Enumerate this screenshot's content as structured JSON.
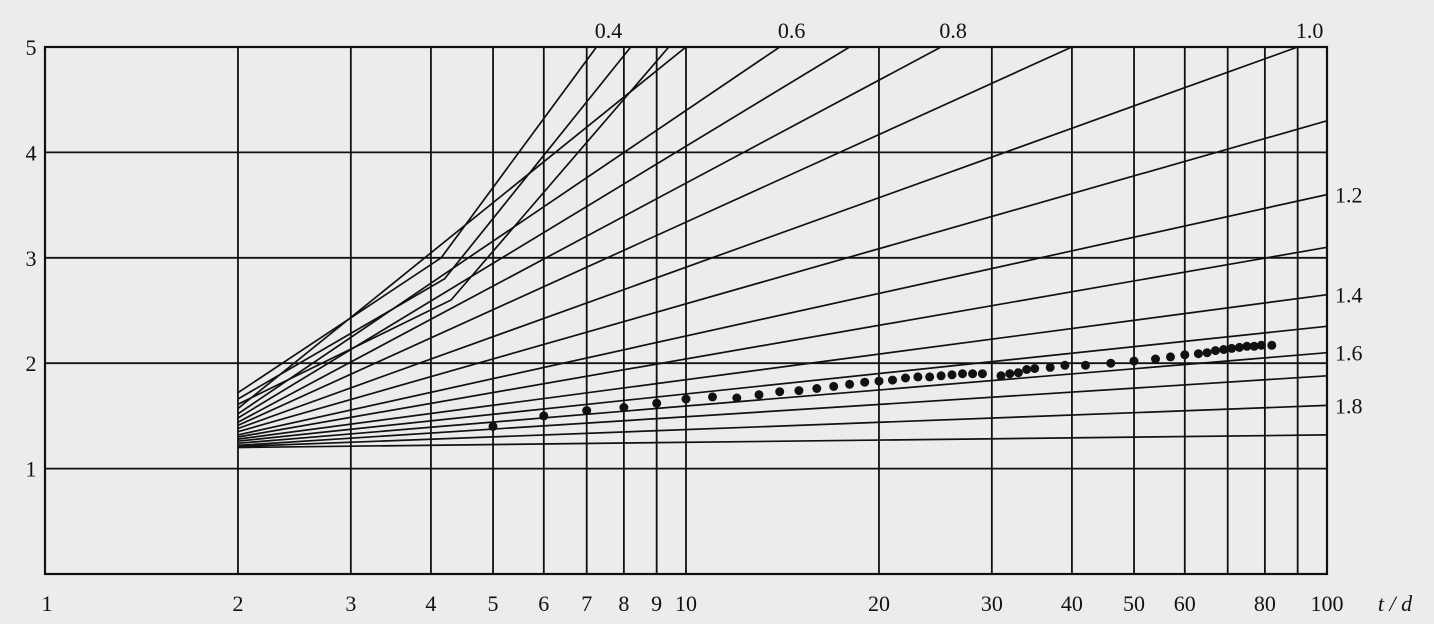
{
  "chart_data": {
    "type": "line",
    "xscale": "log",
    "xlim": [
      1,
      100
    ],
    "ylim": [
      0,
      5
    ],
    "grid": true,
    "xlabel": "t / d",
    "ylabel": "",
    "xticks": [
      {
        "value": 1,
        "label": "1"
      },
      {
        "value": 2,
        "label": "2"
      },
      {
        "value": 3,
        "label": "3"
      },
      {
        "value": 4,
        "label": "4"
      },
      {
        "value": 5,
        "label": "5"
      },
      {
        "value": 6,
        "label": "6"
      },
      {
        "value": 7,
        "label": "7"
      },
      {
        "value": 8,
        "label": "8"
      },
      {
        "value": 9,
        "label": "9"
      },
      {
        "value": 10,
        "label": "10"
      },
      {
        "value": 20,
        "label": "20"
      },
      {
        "value": 30,
        "label": "30"
      },
      {
        "value": 40,
        "label": "40"
      },
      {
        "value": 50,
        "label": "50"
      },
      {
        "value": 60,
        "label": "60"
      },
      {
        "value": 80,
        "label": "80"
      },
      {
        "value": 100,
        "label": "100"
      }
    ],
    "xgrid_extra": [
      70,
      90
    ],
    "yticks": [
      {
        "value": 1,
        "label": "1"
      },
      {
        "value": 2,
        "label": "2"
      },
      {
        "value": 3,
        "label": "3"
      },
      {
        "value": 4,
        "label": "4"
      },
      {
        "value": 5,
        "label": "5"
      }
    ],
    "series": [
      {
        "label": "0.4",
        "points": [
          [
            2,
            1.72
          ],
          [
            4.15,
            3.0
          ],
          [
            7.25,
            5.0
          ]
        ]
      },
      {
        "points": [
          [
            2,
            1.66
          ],
          [
            4.2,
            2.8
          ],
          [
            8.2,
            5.0
          ]
        ]
      },
      {
        "points": [
          [
            2,
            1.61
          ],
          [
            4.3,
            2.6
          ],
          [
            9.4,
            5.0
          ]
        ]
      },
      {
        "points": [
          [
            2,
            1.57
          ],
          [
            10.0,
            5.0
          ]
        ]
      },
      {
        "label": "0.6",
        "points": [
          [
            2,
            1.52
          ],
          [
            14.0,
            5.0
          ]
        ]
      },
      {
        "points": [
          [
            2,
            1.48
          ],
          [
            18.0,
            5.0
          ]
        ]
      },
      {
        "label": "0.8",
        "points": [
          [
            2,
            1.44
          ],
          [
            25.0,
            5.0
          ]
        ]
      },
      {
        "points": [
          [
            2,
            1.41
          ],
          [
            40.0,
            5.0
          ]
        ]
      },
      {
        "label": "1.0",
        "points": [
          [
            2,
            1.38
          ],
          [
            90.0,
            5.0
          ]
        ]
      },
      {
        "points": [
          [
            2,
            1.35
          ],
          [
            100,
            4.3
          ]
        ]
      },
      {
        "label": "1.2",
        "points": [
          [
            2,
            1.32
          ],
          [
            100,
            3.6
          ]
        ]
      },
      {
        "points": [
          [
            2,
            1.3
          ],
          [
            100,
            3.1
          ]
        ]
      },
      {
        "label": "1.4",
        "points": [
          [
            2,
            1.28
          ],
          [
            100,
            2.65
          ]
        ]
      },
      {
        "points": [
          [
            2,
            1.26
          ],
          [
            100,
            2.35
          ]
        ]
      },
      {
        "label": "1.6",
        "points": [
          [
            2,
            1.24
          ],
          [
            100,
            2.1
          ]
        ]
      },
      {
        "points": [
          [
            2,
            1.22
          ],
          [
            100,
            1.88
          ]
        ]
      },
      {
        "label": "1.8",
        "points": [
          [
            2,
            1.21
          ],
          [
            100,
            1.6
          ]
        ]
      },
      {
        "points": [
          [
            2,
            1.2
          ],
          [
            100,
            1.32
          ]
        ]
      }
    ],
    "scatter": [
      [
        5,
        1.4
      ],
      [
        6,
        1.5
      ],
      [
        7,
        1.55
      ],
      [
        8,
        1.58
      ],
      [
        9,
        1.62
      ],
      [
        10,
        1.66
      ],
      [
        11,
        1.68
      ],
      [
        12,
        1.67
      ],
      [
        13,
        1.7
      ],
      [
        14,
        1.73
      ],
      [
        15,
        1.74
      ],
      [
        16,
        1.76
      ],
      [
        17,
        1.78
      ],
      [
        18,
        1.8
      ],
      [
        19,
        1.82
      ],
      [
        20,
        1.83
      ],
      [
        21,
        1.84
      ],
      [
        22,
        1.86
      ],
      [
        23,
        1.87
      ],
      [
        24,
        1.87
      ],
      [
        25,
        1.88
      ],
      [
        26,
        1.89
      ],
      [
        27,
        1.9
      ],
      [
        28,
        1.9
      ],
      [
        29,
        1.9
      ],
      [
        31,
        1.88
      ],
      [
        32,
        1.9
      ],
      [
        33,
        1.91
      ],
      [
        34,
        1.94
      ],
      [
        35,
        1.95
      ],
      [
        37,
        1.96
      ],
      [
        39,
        1.98
      ],
      [
        42,
        1.98
      ],
      [
        46,
        2.0
      ],
      [
        50,
        2.02
      ],
      [
        54,
        2.04
      ],
      [
        57,
        2.06
      ],
      [
        60,
        2.08
      ],
      [
        63,
        2.09
      ],
      [
        65,
        2.1
      ],
      [
        67,
        2.12
      ],
      [
        69,
        2.13
      ],
      [
        71,
        2.14
      ],
      [
        73,
        2.15
      ],
      [
        75,
        2.16
      ],
      [
        77,
        2.16
      ],
      [
        79,
        2.17
      ],
      [
        82,
        2.17
      ]
    ]
  }
}
